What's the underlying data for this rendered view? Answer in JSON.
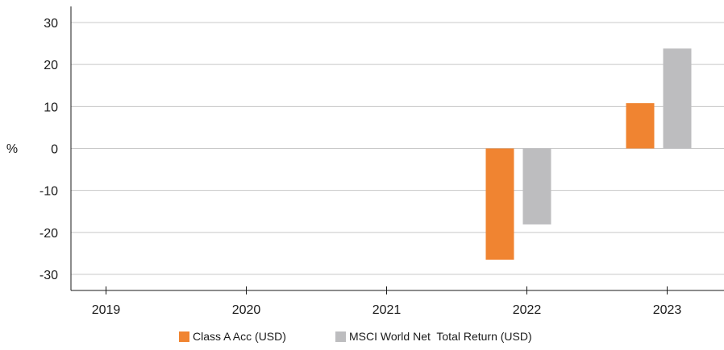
{
  "chart_data": {
    "type": "bar",
    "title": "",
    "xlabel": "",
    "ylabel": "%",
    "categories": [
      "2019",
      "2020",
      "2021",
      "2022",
      "2023"
    ],
    "ylim": [
      -33,
      33
    ],
    "yticks": [
      30,
      20,
      10,
      0,
      -10,
      -20,
      -30
    ],
    "grid": true,
    "legend_position": "bottom",
    "series": [
      {
        "name": "Class A Acc (USD)",
        "color": "#f08431",
        "values": [
          null,
          null,
          null,
          -26.5,
          10.8
        ]
      },
      {
        "name": "MSCI World Net  Total Return (USD)",
        "color": "#bdbdbf",
        "values": [
          null,
          null,
          null,
          -18.1,
          23.8
        ]
      }
    ]
  }
}
